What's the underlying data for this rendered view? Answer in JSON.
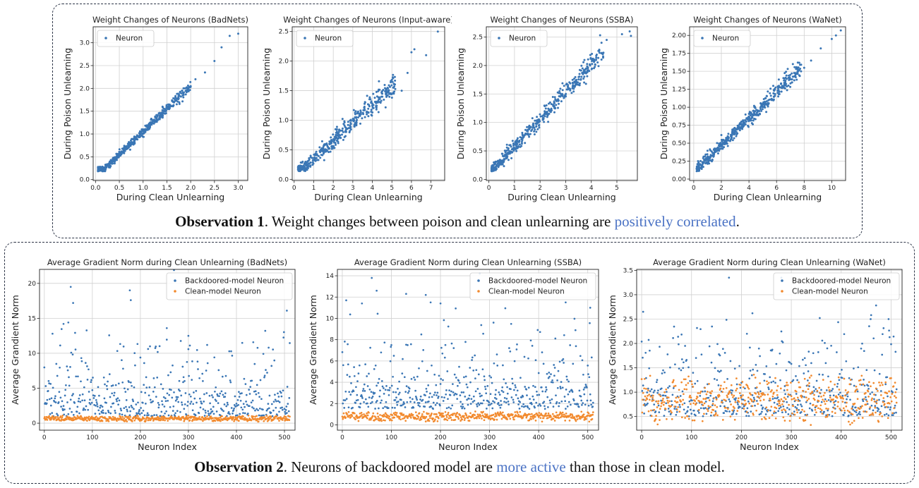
{
  "observations": [
    {
      "bold": "Observation 1",
      "before": ". Weight changes between poison and clean unlearning are ",
      "highlight": "positively correlated",
      "after": "."
    },
    {
      "bold": "Observation 2",
      "before": ". Neurons of backdoored model are ",
      "highlight": "more active",
      "after": " than those in clean model."
    }
  ],
  "colors": {
    "blue": "#3a76b5",
    "orange": "#f28a2e",
    "grid": "#d0d0d0",
    "highlight": "#4a72c4"
  },
  "chart_data": [
    {
      "type": "scatter",
      "title": "Weight Changes of Neurons (BadNets)",
      "xlabel": "During Clean Unlearning",
      "ylabel": "During Poison Unlearning",
      "xlim": [
        -0.05,
        3.2
      ],
      "ylim": [
        -0.02,
        3.35
      ],
      "xticks": [
        0.0,
        0.5,
        1.0,
        1.5,
        2.0,
        2.5,
        3.0
      ],
      "yticks": [
        0.0,
        0.5,
        1.0,
        1.5,
        2.0,
        2.5,
        3.0
      ],
      "xtick_labels": [
        "0.0",
        "0.5",
        "1.0",
        "1.5",
        "2.0",
        "2.5",
        "3.0"
      ],
      "ytick_labels": [
        "0.0",
        "0.5",
        "1.0",
        "1.5",
        "2.0",
        "2.5",
        "3.0"
      ],
      "grid": true,
      "legend": "top-left",
      "series": [
        {
          "name": "Neuron",
          "color": "#3a76b5",
          "n": 500,
          "x_range": [
            0.05,
            2.0
          ],
          "slope": 1.0,
          "intercept": 0.05,
          "noise": 0.06,
          "outliers": [
            [
              2.1,
              2.2
            ],
            [
              2.3,
              2.35
            ],
            [
              2.5,
              2.6
            ],
            [
              2.65,
              2.9
            ],
            [
              2.82,
              3.15
            ],
            [
              3.0,
              3.2
            ],
            [
              1.85,
              2.0
            ],
            [
              1.9,
              1.95
            ]
          ]
        }
      ]
    },
    {
      "type": "scatter",
      "title": "Weight Changes of Neurons (Input-aware)",
      "xlabel": "During Clean Unlearning",
      "ylabel": "During Poison Unlearning",
      "xlim": [
        -0.1,
        7.7
      ],
      "ylim": [
        -0.02,
        2.58
      ],
      "xticks": [
        0,
        1,
        2,
        3,
        4,
        5,
        6,
        7
      ],
      "yticks": [
        0.0,
        0.5,
        1.0,
        1.5,
        2.0,
        2.5
      ],
      "xtick_labels": [
        "0",
        "1",
        "2",
        "3",
        "4",
        "5",
        "6",
        "7"
      ],
      "ytick_labels": [
        "0.0",
        "0.5",
        "1.0",
        "1.5",
        "2.0",
        "2.5"
      ],
      "grid": true,
      "legend": "top-left",
      "series": [
        {
          "name": "Neuron",
          "color": "#3a76b5",
          "n": 430,
          "x_range": [
            0.2,
            5.2
          ],
          "slope": 0.3,
          "intercept": 0.06,
          "noise": 0.1,
          "outliers": [
            [
              5.8,
              1.8
            ],
            [
              6.0,
              2.15
            ],
            [
              6.15,
              2.2
            ],
            [
              6.75,
              2.1
            ],
            [
              7.35,
              2.5
            ],
            [
              5.5,
              1.5
            ],
            [
              5.1,
              1.45
            ]
          ]
        }
      ]
    },
    {
      "type": "scatter",
      "title": "Weight Changes of Neurons (SSBA)",
      "xlabel": "During Clean Unlearning",
      "ylabel": "During Poison Unlearning",
      "xlim": [
        -0.1,
        5.8
      ],
      "ylim": [
        -0.02,
        2.68
      ],
      "xticks": [
        0,
        1,
        2,
        3,
        4,
        5
      ],
      "yticks": [
        0.0,
        0.5,
        1.0,
        1.5,
        2.0,
        2.5
      ],
      "xtick_labels": [
        "0",
        "1",
        "2",
        "3",
        "4",
        "5"
      ],
      "ytick_labels": [
        "0.0",
        "0.5",
        "1.0",
        "1.5",
        "2.0",
        "2.5"
      ],
      "grid": true,
      "legend": "top-left",
      "series": [
        {
          "name": "Neuron",
          "color": "#3a76b5",
          "n": 460,
          "x_range": [
            0.1,
            4.5
          ],
          "slope": 0.48,
          "intercept": 0.1,
          "noise": 0.1,
          "outliers": [
            [
              5.2,
              2.55
            ],
            [
              5.5,
              2.6
            ],
            [
              5.55,
              2.52
            ],
            [
              4.6,
              2.45
            ],
            [
              4.4,
              2.4
            ],
            [
              3.95,
              2.0
            ]
          ]
        }
      ]
    },
    {
      "type": "scatter",
      "title": "Weight Changes of Neurons (WaNet)",
      "xlabel": "During Clean Unlearning",
      "ylabel": "During Poison Unlearning",
      "xlim": [
        -0.3,
        11.0
      ],
      "ylim": [
        -0.02,
        2.12
      ],
      "xticks": [
        0,
        2,
        4,
        6,
        8,
        10
      ],
      "yticks": [
        0.0,
        0.25,
        0.5,
        0.75,
        1.0,
        1.25,
        1.5,
        1.75,
        2.0
      ],
      "xtick_labels": [
        "0",
        "2",
        "4",
        "6",
        "8",
        "10"
      ],
      "ytick_labels": [
        "0.00",
        "0.25",
        "0.50",
        "0.75",
        "1.00",
        "1.25",
        "1.50",
        "1.75",
        "2.00"
      ],
      "grid": true,
      "legend": "top-left",
      "series": [
        {
          "name": "Neuron",
          "color": "#3a76b5",
          "n": 480,
          "x_range": [
            0.2,
            7.8
          ],
          "slope": 0.185,
          "intercept": 0.1,
          "noise": 0.07,
          "outliers": [
            [
              8.5,
              1.65
            ],
            [
              9.2,
              1.82
            ],
            [
              10.0,
              1.95
            ],
            [
              10.3,
              2.0
            ],
            [
              10.65,
              2.07
            ],
            [
              8.0,
              1.55
            ]
          ]
        }
      ]
    },
    {
      "type": "scatter",
      "title": "Average Gradient Norm during Clean Unlearning (BadNets)",
      "xlabel": "Neuron Index",
      "ylabel": "Average Grandient Norm",
      "xlim": [
        -10,
        522
      ],
      "ylim": [
        -1.0,
        22.0
      ],
      "xticks": [
        0,
        100,
        200,
        300,
        400,
        500
      ],
      "yticks": [
        0,
        5,
        10,
        15,
        20
      ],
      "xtick_labels": [
        "0",
        "100",
        "200",
        "300",
        "400",
        "500"
      ],
      "ytick_labels": [
        "0",
        "5",
        "10",
        "15",
        "20"
      ],
      "grid": true,
      "legend": "top-right",
      "series": [
        {
          "name": "Backdoored-model Neuron",
          "color": "#3a76b5",
          "n": 512,
          "dist": "exp",
          "min": 1.0,
          "mean": 4.5,
          "max": 13.5,
          "outliers": [
            [
              55,
              19.5
            ],
            [
              60,
              17.2
            ],
            [
              178,
              19.0
            ],
            [
              180,
              17.6
            ],
            [
              270,
              21.9
            ],
            [
              505,
              16.1
            ],
            [
              40,
              14.2
            ],
            [
              50,
              14.4
            ],
            [
              255,
              13.6
            ],
            [
              300,
              12.5
            ]
          ]
        },
        {
          "name": "Clean-model Neuron",
          "color": "#f28a2e",
          "n": 512,
          "dist": "uniform",
          "min": 0.2,
          "max": 1.1
        }
      ]
    },
    {
      "type": "scatter",
      "title": "Average Gradient Norm during Clean Unlearning (SSBA)",
      "xlabel": "Neuron Index",
      "ylabel": "Average Grandient Norm",
      "xlim": [
        -10,
        522
      ],
      "ylim": [
        -0.5,
        14.6
      ],
      "xticks": [
        0,
        100,
        200,
        300,
        400,
        500
      ],
      "yticks": [
        0,
        2,
        4,
        6,
        8,
        10,
        12,
        14
      ],
      "xtick_labels": [
        "0",
        "100",
        "200",
        "300",
        "400",
        "500"
      ],
      "ytick_labels": [
        "0",
        "2",
        "4",
        "6",
        "8",
        "10",
        "12",
        "14"
      ],
      "grid": true,
      "legend": "top-right",
      "series": [
        {
          "name": "Backdoored-model Neuron",
          "color": "#3a76b5",
          "n": 512,
          "dist": "exp",
          "min": 1.5,
          "mean": 3.8,
          "max": 12.0,
          "outliers": [
            [
              60,
              13.8
            ],
            [
              70,
              12.6
            ],
            [
              130,
              12.3
            ],
            [
              170,
              12.2
            ],
            [
              180,
              11.5
            ],
            [
              200,
              11.4
            ],
            [
              280,
              14.2
            ],
            [
              455,
              11.5
            ],
            [
              505,
              11.0
            ],
            [
              40,
              11.4
            ]
          ]
        },
        {
          "name": "Clean-model Neuron",
          "color": "#f28a2e",
          "n": 512,
          "dist": "uniform",
          "min": 0.3,
          "max": 1.3
        }
      ]
    },
    {
      "type": "scatter",
      "title": "Average Gradient Norm during Clean Unlearning (WaNet)",
      "xlabel": "Neuron Index",
      "ylabel": "Average Grandient Norm",
      "xlim": [
        -10,
        522
      ],
      "ylim": [
        0.22,
        3.52
      ],
      "xticks": [
        0,
        100,
        200,
        300,
        400,
        500
      ],
      "yticks": [
        0.5,
        1.0,
        1.5,
        2.0,
        2.5,
        3.0,
        3.5
      ],
      "xtick_labels": [
        "0",
        "100",
        "200",
        "300",
        "400",
        "500"
      ],
      "ytick_labels": [
        "0.5",
        "1.0",
        "1.5",
        "2.0",
        "2.5",
        "3.0",
        "3.5"
      ],
      "grid": true,
      "legend": "top-right",
      "series": [
        {
          "name": "Backdoored-model Neuron",
          "color": "#3a76b5",
          "n": 512,
          "dist": "exp",
          "min": 0.5,
          "mean": 1.05,
          "max": 2.6,
          "outliers": [
            [
              3,
              2.65
            ],
            [
              175,
              3.35
            ],
            [
              280,
              3.35
            ],
            [
              222,
              2.62
            ],
            [
              495,
              2.5
            ],
            [
              470,
              2.78
            ],
            [
              460,
              2.58
            ]
          ]
        },
        {
          "name": "Clean-model Neuron",
          "color": "#f28a2e",
          "n": 512,
          "dist": "uniform",
          "min": 0.3,
          "max": 1.4
        }
      ]
    }
  ]
}
